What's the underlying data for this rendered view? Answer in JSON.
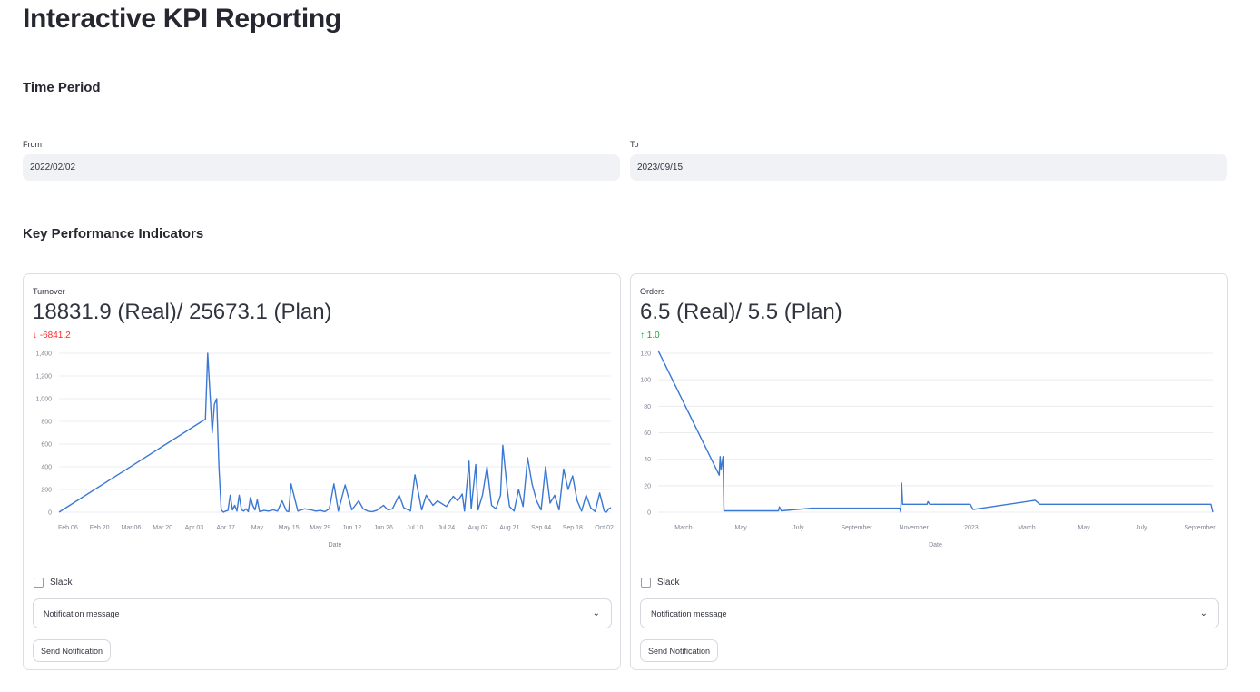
{
  "page": {
    "title": "Interactive KPI Reporting"
  },
  "time_period": {
    "heading": "Time Period",
    "from": {
      "label": "From",
      "value": "2022/02/02"
    },
    "to": {
      "label": "To",
      "value": "2023/09/15"
    }
  },
  "kpi": {
    "heading": "Key Performance Indicators",
    "cards": [
      {
        "label": "Turnover",
        "value": "18831.9 (Real)/ 25673.1 (Plan)",
        "delta": "-6841.2",
        "delta_direction": "down",
        "delta_color": "#ff2b2b",
        "slack_label": "Slack",
        "select_value": "Notification message",
        "button_label": "Send Notification"
      },
      {
        "label": "Orders",
        "value": "6.5 (Real)/ 5.5 (Plan)",
        "delta": "1.0",
        "delta_direction": "up",
        "delta_color": "#09ab3b",
        "slack_label": "Slack",
        "select_value": "Notification message",
        "button_label": "Send Notification"
      }
    ]
  },
  "icons": {
    "delta_down": "arrow-down-icon",
    "delta_up": "arrow-up-icon",
    "select": "chevron-down-icon"
  },
  "chart_data": [
    {
      "type": "line",
      "xlabel": "Date",
      "ylabel": "",
      "ylim": [
        0,
        1400
      ],
      "yticks": [
        0,
        200,
        400,
        600,
        800,
        1000,
        1200,
        1400
      ],
      "ytick_labels": [
        "0",
        "200",
        "400",
        "600",
        "800",
        "1,000",
        "1,200",
        "1,400"
      ],
      "xlim": [
        "2022-02-02",
        "2022-10-05"
      ],
      "xtick_dates": [
        "2022-02-06",
        "2022-02-20",
        "2022-03-06",
        "2022-03-20",
        "2022-04-03",
        "2022-04-17",
        "2022-05-01",
        "2022-05-15",
        "2022-05-29",
        "2022-06-12",
        "2022-06-26",
        "2022-07-10",
        "2022-07-24",
        "2022-08-07",
        "2022-08-21",
        "2022-09-04",
        "2022-09-18",
        "2022-10-02"
      ],
      "xtick_labels": [
        "Feb 06",
        "Feb 20",
        "Mar 06",
        "Mar 20",
        "Apr 03",
        "Apr 17",
        "May",
        "May 15",
        "May 29",
        "Jun 12",
        "Jun 26",
        "Jul 10",
        "Jul 24",
        "Aug 07",
        "Aug 21",
        "Sep 04",
        "Sep 18",
        "Oct 02"
      ],
      "grid": true,
      "color": "#3a78d4",
      "series": [
        {
          "x": [
            "2022-02-02",
            "2022-04-08",
            "2022-04-09",
            "2022-04-10",
            "2022-04-11",
            "2022-04-12",
            "2022-04-13",
            "2022-04-14",
            "2022-04-15",
            "2022-04-16",
            "2022-04-17",
            "2022-04-18",
            "2022-04-19",
            "2022-04-20",
            "2022-04-21",
            "2022-04-22",
            "2022-04-23",
            "2022-04-24",
            "2022-04-25",
            "2022-04-26",
            "2022-04-27",
            "2022-04-28",
            "2022-04-29",
            "2022-04-30",
            "2022-05-01",
            "2022-05-02",
            "2022-05-04",
            "2022-05-06",
            "2022-05-08",
            "2022-05-10",
            "2022-05-12",
            "2022-05-14",
            "2022-05-15",
            "2022-05-16",
            "2022-05-19",
            "2022-05-22",
            "2022-05-25",
            "2022-05-27",
            "2022-05-29",
            "2022-05-31",
            "2022-06-02",
            "2022-06-04",
            "2022-06-06",
            "2022-06-09",
            "2022-06-12",
            "2022-06-15",
            "2022-06-17",
            "2022-06-19",
            "2022-06-21",
            "2022-06-23",
            "2022-06-26",
            "2022-06-28",
            "2022-06-30",
            "2022-07-03",
            "2022-07-05",
            "2022-07-08",
            "2022-07-10",
            "2022-07-13",
            "2022-07-15",
            "2022-07-18",
            "2022-07-20",
            "2022-07-24",
            "2022-07-27",
            "2022-07-29",
            "2022-07-31",
            "2022-08-01",
            "2022-08-03",
            "2022-08-04",
            "2022-08-06",
            "2022-08-07",
            "2022-08-09",
            "2022-08-11",
            "2022-08-13",
            "2022-08-15",
            "2022-08-17",
            "2022-08-18",
            "2022-08-20",
            "2022-08-21",
            "2022-08-23",
            "2022-08-25",
            "2022-08-27",
            "2022-08-29",
            "2022-08-31",
            "2022-09-02",
            "2022-09-04",
            "2022-09-06",
            "2022-09-08",
            "2022-09-10",
            "2022-09-12",
            "2022-09-14",
            "2022-09-16",
            "2022-09-18",
            "2022-09-20",
            "2022-09-22",
            "2022-09-24",
            "2022-09-26",
            "2022-09-28",
            "2022-09-30",
            "2022-10-02",
            "2022-10-03",
            "2022-10-04",
            "2022-10-05"
          ],
          "y": [
            0,
            820,
            1400,
            1050,
            700,
            950,
            1000,
            400,
            20,
            0,
            10,
            15,
            150,
            20,
            60,
            10,
            150,
            20,
            10,
            30,
            5,
            130,
            60,
            20,
            110,
            5,
            15,
            10,
            20,
            10,
            100,
            10,
            5,
            250,
            10,
            30,
            20,
            10,
            15,
            5,
            30,
            250,
            10,
            240,
            20,
            100,
            30,
            10,
            5,
            15,
            60,
            20,
            30,
            150,
            40,
            10,
            330,
            20,
            150,
            60,
            100,
            50,
            140,
            100,
            160,
            10,
            450,
            30,
            420,
            20,
            150,
            400,
            60,
            30,
            150,
            590,
            200,
            50,
            10,
            200,
            50,
            480,
            250,
            100,
            20,
            400,
            80,
            150,
            20,
            380,
            200,
            320,
            100,
            10,
            150,
            40,
            5,
            170,
            10,
            0,
            30,
            40
          ]
        }
      ]
    },
    {
      "type": "line",
      "xlabel": "Date",
      "ylabel": "",
      "ylim": [
        0,
        120
      ],
      "yticks": [
        0,
        20,
        40,
        60,
        80,
        100,
        120
      ],
      "ytick_labels": [
        "0",
        "20",
        "40",
        "60",
        "80",
        "100",
        "120"
      ],
      "xlim": [
        "2022-02-02",
        "2023-09-15"
      ],
      "xtick_dates": [
        "2022-03-01",
        "2022-05-01",
        "2022-07-01",
        "2022-09-01",
        "2022-11-01",
        "2023-01-01",
        "2023-03-01",
        "2023-05-01",
        "2023-07-01",
        "2023-09-01"
      ],
      "xtick_labels": [
        "March",
        "May",
        "July",
        "September",
        "November",
        "2023",
        "March",
        "May",
        "July",
        "September"
      ],
      "grid": true,
      "color": "#3a78d4",
      "series": [
        {
          "x": [
            "2022-02-02",
            "2022-04-08",
            "2022-04-09",
            "2022-04-10",
            "2022-04-12",
            "2022-04-13",
            "2022-04-14",
            "2022-06-10",
            "2022-06-11",
            "2022-06-13",
            "2022-07-15",
            "2022-10-17",
            "2022-10-18",
            "2022-10-19",
            "2022-10-20",
            "2022-10-22",
            "2022-11-15",
            "2022-11-16",
            "2022-11-18",
            "2022-12-31",
            "2023-01-03",
            "2023-03-10",
            "2023-03-15",
            "2023-09-13",
            "2023-09-15"
          ],
          "y": [
            122,
            28,
            42,
            32,
            42,
            1,
            1,
            1,
            4,
            1,
            3,
            3,
            0,
            22,
            6,
            6,
            6,
            8,
            6,
            6,
            2,
            9,
            6,
            6,
            0
          ]
        }
      ]
    }
  ]
}
